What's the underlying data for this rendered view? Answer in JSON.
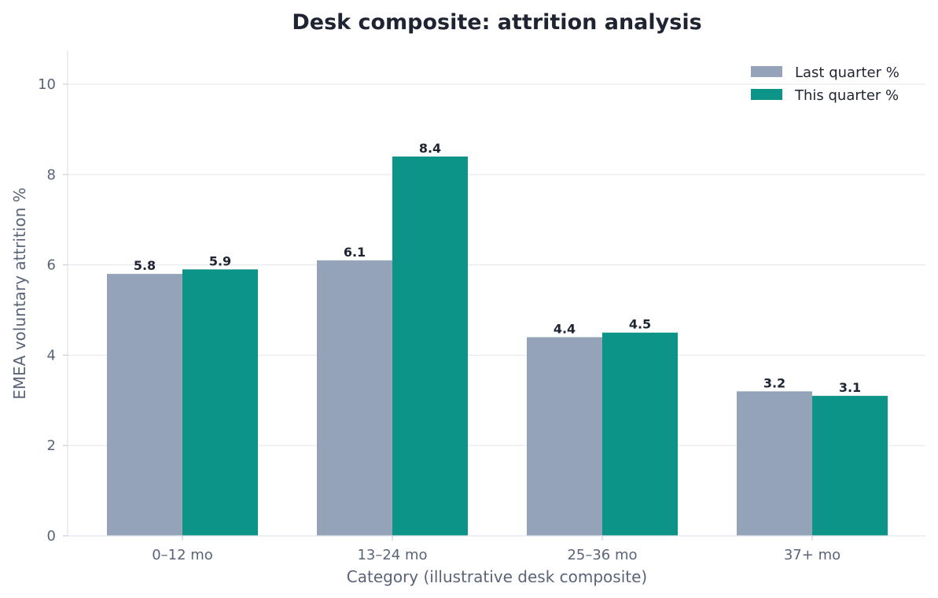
{
  "chart_data": {
    "type": "bar",
    "title": "Desk composite: attrition analysis",
    "xlabel": "Category (illustrative desk composite)",
    "ylabel": "EMEA voluntary attrition %",
    "categories": [
      "0–12 mo",
      "13–24 mo",
      "25–36 mo",
      "37+ mo"
    ],
    "series": [
      {
        "name": "Last quarter %",
        "values": [
          5.8,
          6.1,
          4.4,
          3.2
        ],
        "color": "#94a3b8"
      },
      {
        "name": "This quarter %",
        "values": [
          5.9,
          8.4,
          4.5,
          3.1
        ],
        "color": "#0d9488"
      }
    ],
    "data_labels": [
      [
        "5.8",
        "6.1",
        "4.4",
        "3.2"
      ],
      [
        "5.9",
        "8.4",
        "4.5",
        "3.1"
      ]
    ],
    "ylim": [
      0,
      10.75
    ],
    "yticks": [
      0,
      2,
      4,
      6,
      8,
      10
    ],
    "grid": "horizontal",
    "legend_position": "top-right"
  }
}
